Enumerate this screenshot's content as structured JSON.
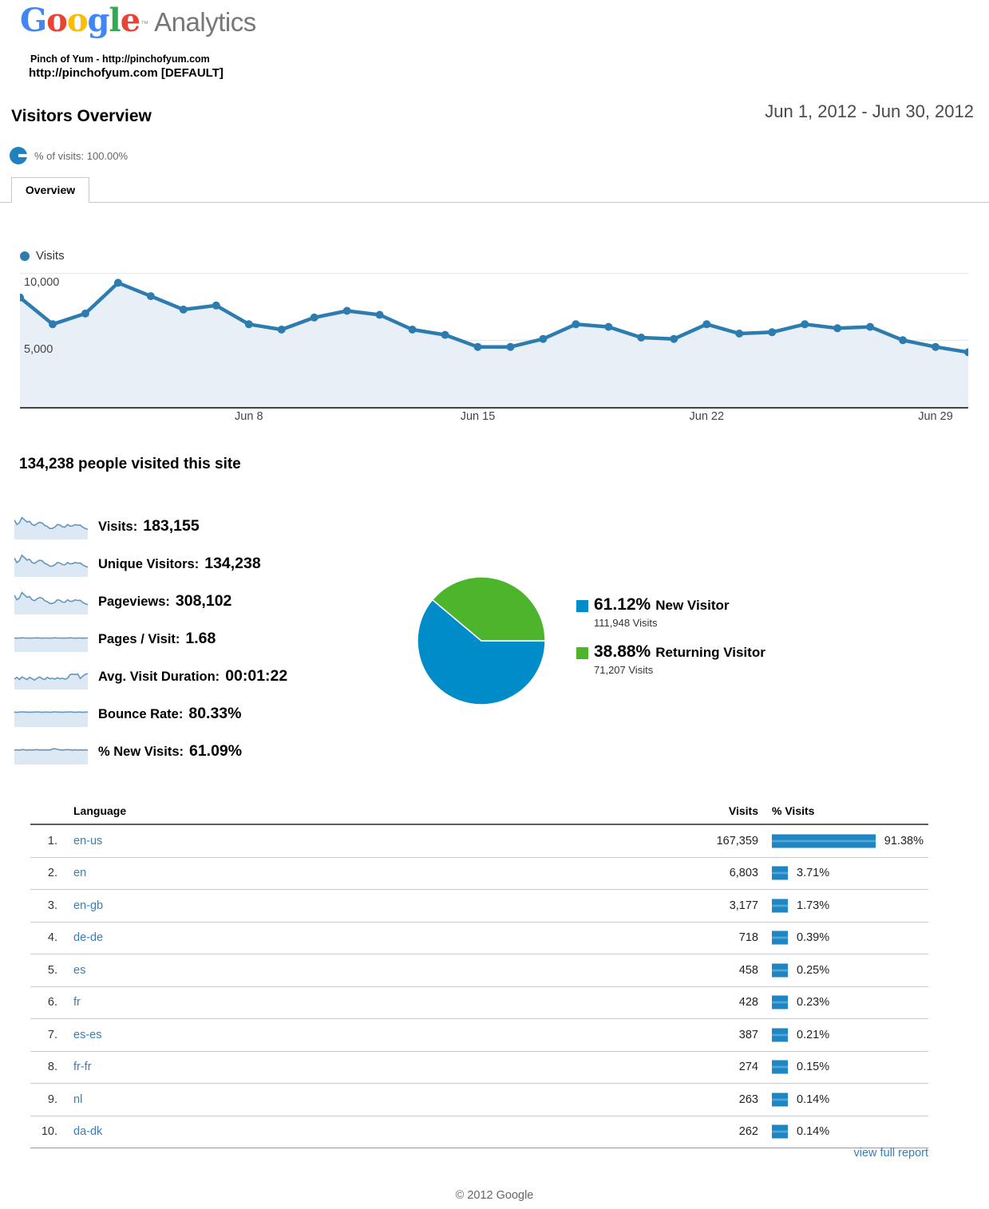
{
  "logo": {
    "google_letters": [
      {
        "ch": "G",
        "color": "#4285F4"
      },
      {
        "ch": "o",
        "color": "#EA4335"
      },
      {
        "ch": "o",
        "color": "#FBBC05"
      },
      {
        "ch": "g",
        "color": "#4285F4"
      },
      {
        "ch": "l",
        "color": "#34A853"
      },
      {
        "ch": "e",
        "color": "#EA4335"
      }
    ],
    "trademark": "™",
    "product": "Analytics"
  },
  "header": {
    "account_line1": "Pinch of Yum - http://pinchofyum.com",
    "account_line2": "http://pinchofyum.com [DEFAULT]",
    "page_title": "Visitors Overview",
    "date_range": "Jun 1, 2012 - Jun 30, 2012",
    "segment_label": "% of visits: 100.00%",
    "tab_label": "Overview"
  },
  "chart_data": [
    {
      "id": "visits-over-time",
      "type": "line",
      "legend": "Visits",
      "x": [
        "Jun 1",
        "Jun 2",
        "Jun 3",
        "Jun 4",
        "Jun 5",
        "Jun 6",
        "Jun 7",
        "Jun 8",
        "Jun 9",
        "Jun 10",
        "Jun 11",
        "Jun 12",
        "Jun 13",
        "Jun 14",
        "Jun 15",
        "Jun 16",
        "Jun 17",
        "Jun 18",
        "Jun 19",
        "Jun 20",
        "Jun 21",
        "Jun 22",
        "Jun 23",
        "Jun 24",
        "Jun 25",
        "Jun 26",
        "Jun 27",
        "Jun 28",
        "Jun 29",
        "Jun 30"
      ],
      "values": [
        8200,
        6200,
        7000,
        9300,
        8300,
        7300,
        7600,
        6200,
        5800,
        6700,
        7200,
        6900,
        5800,
        5400,
        4500,
        4500,
        5100,
        6200,
        6000,
        5200,
        5100,
        6200,
        5500,
        5600,
        6200,
        5900,
        6000,
        5000,
        4500,
        4100
      ],
      "ylim": [
        0,
        10160
      ],
      "yticks": [
        {
          "value": 5000,
          "label": "5,000"
        },
        {
          "value": 10000,
          "label": "10,000"
        }
      ],
      "xticks": [
        {
          "i": 7,
          "label": "Jun 8"
        },
        {
          "i": 14,
          "label": "Jun 15"
        },
        {
          "i": 21,
          "label": "Jun 22"
        },
        {
          "i": 28,
          "label": "Jun 29"
        }
      ],
      "grid": true,
      "line_color": "#2D7CB0",
      "fill_color": "#E9EFF6"
    },
    {
      "id": "visitor-type",
      "type": "pie",
      "slices": [
        {
          "label": "New Visitor",
          "percent": 61.12,
          "percent_label": "61.12%",
          "visits_label": "111,948 Visits",
          "color": "#008CC9"
        },
        {
          "label": "Returning Visitor",
          "percent": 38.88,
          "percent_label": "38.88%",
          "visits_label": "71,207 Visits",
          "color": "#4CB52C"
        }
      ],
      "legend_position": "right"
    }
  ],
  "summary": {
    "headline": "134,238 people visited this site",
    "metrics": [
      {
        "label": "Visits:",
        "value": "183,155",
        "spark": [
          0.82,
          0.62,
          0.7,
          0.93,
          0.83,
          0.73,
          0.76,
          0.62,
          0.58,
          0.67,
          0.72,
          0.69,
          0.58,
          0.54,
          0.45,
          0.45,
          0.51,
          0.62,
          0.6,
          0.52,
          0.51,
          0.62,
          0.55,
          0.56,
          0.62,
          0.59,
          0.6,
          0.5,
          0.45,
          0.41
        ]
      },
      {
        "label": "Unique Visitors:",
        "value": "134,238",
        "spark": [
          0.8,
          0.6,
          0.68,
          0.92,
          0.81,
          0.71,
          0.74,
          0.6,
          0.56,
          0.65,
          0.7,
          0.67,
          0.56,
          0.52,
          0.44,
          0.44,
          0.5,
          0.6,
          0.58,
          0.51,
          0.5,
          0.6,
          0.54,
          0.55,
          0.6,
          0.57,
          0.58,
          0.49,
          0.44,
          0.4
        ]
      },
      {
        "label": "Pageviews:",
        "value": "308,102",
        "spark": [
          0.81,
          0.61,
          0.69,
          0.93,
          0.82,
          0.72,
          0.75,
          0.61,
          0.57,
          0.66,
          0.71,
          0.68,
          0.57,
          0.53,
          0.45,
          0.45,
          0.5,
          0.61,
          0.59,
          0.51,
          0.5,
          0.61,
          0.54,
          0.55,
          0.61,
          0.58,
          0.59,
          0.49,
          0.44,
          0.4
        ]
      },
      {
        "label": "Pages / Visit:",
        "value": "1.68",
        "spark": [
          0.58,
          0.57,
          0.58,
          0.59,
          0.58,
          0.58,
          0.57,
          0.58,
          0.58,
          0.59,
          0.58,
          0.57,
          0.58,
          0.58,
          0.57,
          0.58,
          0.59,
          0.58,
          0.58,
          0.57,
          0.58,
          0.58,
          0.59,
          0.58,
          0.57,
          0.58,
          0.58,
          0.57,
          0.58,
          0.58
        ]
      },
      {
        "label": "Avg. Visit Duration:",
        "value": "00:01:22",
        "spark": [
          0.42,
          0.5,
          0.4,
          0.52,
          0.46,
          0.4,
          0.5,
          0.44,
          0.38,
          0.46,
          0.52,
          0.44,
          0.4,
          0.5,
          0.44,
          0.46,
          0.42,
          0.48,
          0.44,
          0.46,
          0.42,
          0.46,
          0.62,
          0.64,
          0.62,
          0.65,
          0.45,
          0.55,
          0.63,
          0.66
        ]
      },
      {
        "label": "Bounce Rate:",
        "value": "80.33%",
        "spark": [
          0.62,
          0.61,
          0.62,
          0.63,
          0.62,
          0.62,
          0.61,
          0.62,
          0.62,
          0.63,
          0.62,
          0.61,
          0.62,
          0.62,
          0.61,
          0.62,
          0.63,
          0.62,
          0.62,
          0.61,
          0.62,
          0.62,
          0.63,
          0.62,
          0.61,
          0.62,
          0.62,
          0.61,
          0.62,
          0.62
        ]
      },
      {
        "label": "% New Visits:",
        "value": "61.09%",
        "spark": [
          0.6,
          0.61,
          0.6,
          0.62,
          0.61,
          0.6,
          0.61,
          0.6,
          0.61,
          0.62,
          0.6,
          0.61,
          0.6,
          0.61,
          0.6,
          0.64,
          0.66,
          0.63,
          0.61,
          0.6,
          0.61,
          0.62,
          0.61,
          0.6,
          0.61,
          0.6,
          0.61,
          0.6,
          0.61,
          0.6
        ]
      }
    ]
  },
  "table": {
    "columns": [
      "Language",
      "Visits",
      "% Visits"
    ],
    "rows": [
      {
        "rank": "1.",
        "language": "en-us",
        "visits": "167,359",
        "percent": 91.38,
        "percent_label": "91.38%"
      },
      {
        "rank": "2.",
        "language": "en",
        "visits": "6,803",
        "percent": 3.71,
        "percent_label": "3.71%"
      },
      {
        "rank": "3.",
        "language": "en-gb",
        "visits": "3,177",
        "percent": 1.73,
        "percent_label": "1.73%"
      },
      {
        "rank": "4.",
        "language": "de-de",
        "visits": "718",
        "percent": 0.39,
        "percent_label": "0.39%"
      },
      {
        "rank": "5.",
        "language": "es",
        "visits": "458",
        "percent": 0.25,
        "percent_label": "0.25%"
      },
      {
        "rank": "6.",
        "language": "fr",
        "visits": "428",
        "percent": 0.23,
        "percent_label": "0.23%"
      },
      {
        "rank": "7.",
        "language": "es-es",
        "visits": "387",
        "percent": 0.21,
        "percent_label": "0.21%"
      },
      {
        "rank": "8.",
        "language": "fr-fr",
        "visits": "274",
        "percent": 0.15,
        "percent_label": "0.15%"
      },
      {
        "rank": "9.",
        "language": "nl",
        "visits": "263",
        "percent": 0.14,
        "percent_label": "0.14%"
      },
      {
        "rank": "10.",
        "language": "da-dk",
        "visits": "262",
        "percent": 0.14,
        "percent_label": "0.14%"
      }
    ],
    "footer_link": "view full report"
  },
  "footer": {
    "copyright": "© 2012 Google"
  },
  "colors": {
    "line_blue": "#2D7CB0",
    "area_fill": "#E9EFF6",
    "pie_blue": "#008CC9",
    "pie_green": "#4CB52C",
    "bar_blue": "#1E86C2",
    "link_blue": "#3C7DB4",
    "spark_line": "#6397BE",
    "spark_fill": "#DCE8F3"
  }
}
